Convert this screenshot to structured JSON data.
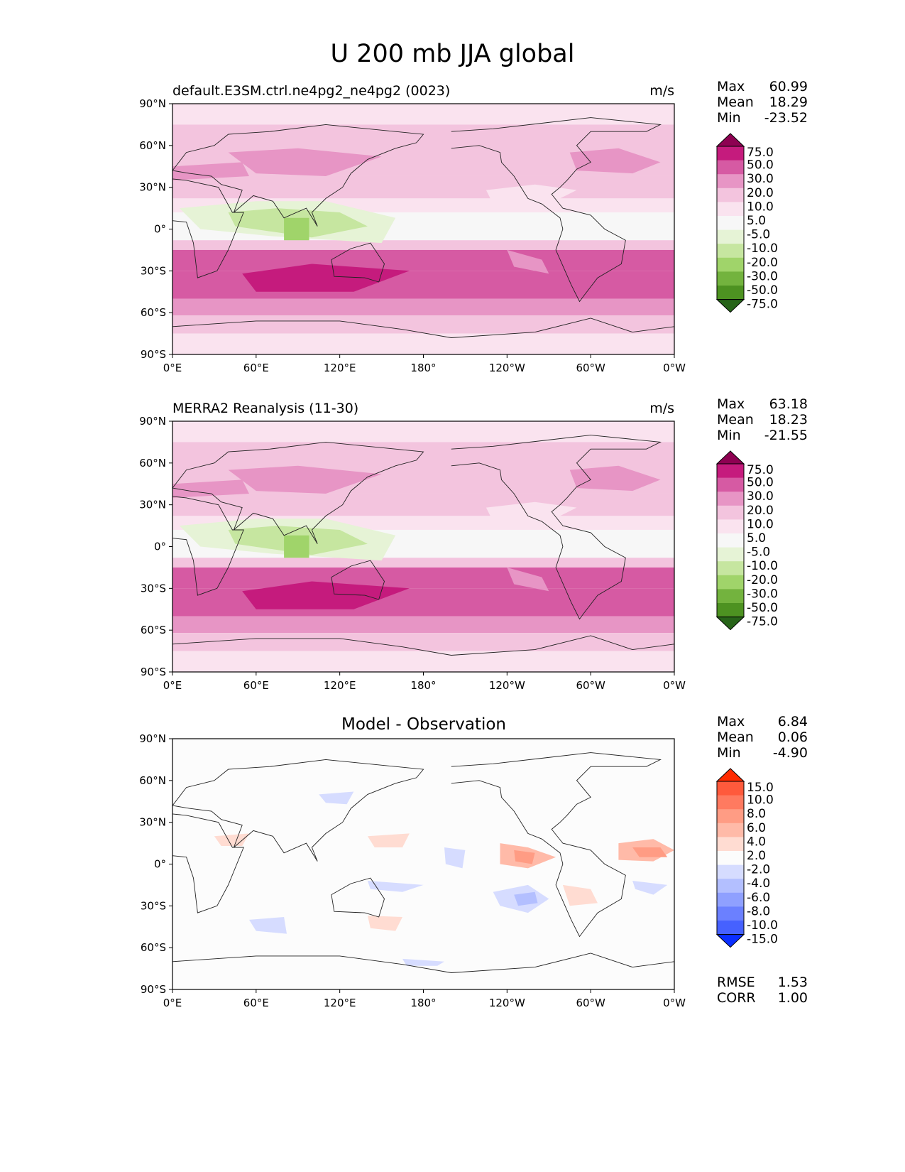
{
  "title": "U 200 mb JJA global",
  "lat_ticks": [
    "90°N",
    "60°N",
    "30°N",
    "0°",
    "30°S",
    "60°S",
    "90°S"
  ],
  "lon_ticks": [
    "0°E",
    "60°E",
    "120°E",
    "180°",
    "120°W",
    "60°W",
    "0°W"
  ],
  "panels": [
    {
      "label": "default.E3SM.ctrl.ne4pg2_ne4pg2 (0023)",
      "unit": "m/s",
      "stats": [
        {
          "name": "Max",
          "value": "60.99"
        },
        {
          "name": "Mean",
          "value": "18.29"
        },
        {
          "name": "Min",
          "value": "-23.52"
        }
      ]
    },
    {
      "label": "MERRA2 Reanalysis (11-30)",
      "unit": "m/s",
      "stats": [
        {
          "name": "Max",
          "value": "63.18"
        },
        {
          "name": "Mean",
          "value": "18.23"
        },
        {
          "name": "Min",
          "value": "-21.55"
        }
      ]
    },
    {
      "label": "Model - Observation",
      "unit": "",
      "stats": [
        {
          "name": "Max",
          "value": "6.84"
        },
        {
          "name": "Mean",
          "value": "0.06"
        },
        {
          "name": "Min",
          "value": "-4.90"
        }
      ],
      "extra_stats": [
        {
          "name": "RMSE",
          "value": "1.53"
        },
        {
          "name": "CORR",
          "value": "1.00"
        }
      ]
    }
  ],
  "colorbars": {
    "field": {
      "labels": [
        "75.0",
        "50.0",
        "30.0",
        "20.0",
        "10.0",
        "5.0",
        "-5.0",
        "-10.0",
        "-20.0",
        "-30.0",
        "-50.0",
        "-75.0"
      ],
      "colors": [
        "#8e0152",
        "#c51b7d",
        "#d65aa3",
        "#e795c5",
        "#f3c4de",
        "#fae3ef",
        "#f7f7f7",
        "#e6f3d6",
        "#c6e6a0",
        "#a0d46a",
        "#73b33e",
        "#4d9221",
        "#276419"
      ]
    },
    "diff": {
      "labels": [
        "15.0",
        "10.0",
        "8.0",
        "6.0",
        "4.0",
        "2.0",
        "-2.0",
        "-4.0",
        "-6.0",
        "-8.0",
        "-10.0",
        "-15.0"
      ],
      "colors": [
        "#ff2a00",
        "#ff5a3c",
        "#ff7a60",
        "#ff9c84",
        "#ffbaa8",
        "#ffdcd2",
        "#fcfcfc",
        "#d6dcff",
        "#b3bfff",
        "#8fa0ff",
        "#6b80ff",
        "#4661ff",
        "#0a2eff"
      ]
    }
  }
}
